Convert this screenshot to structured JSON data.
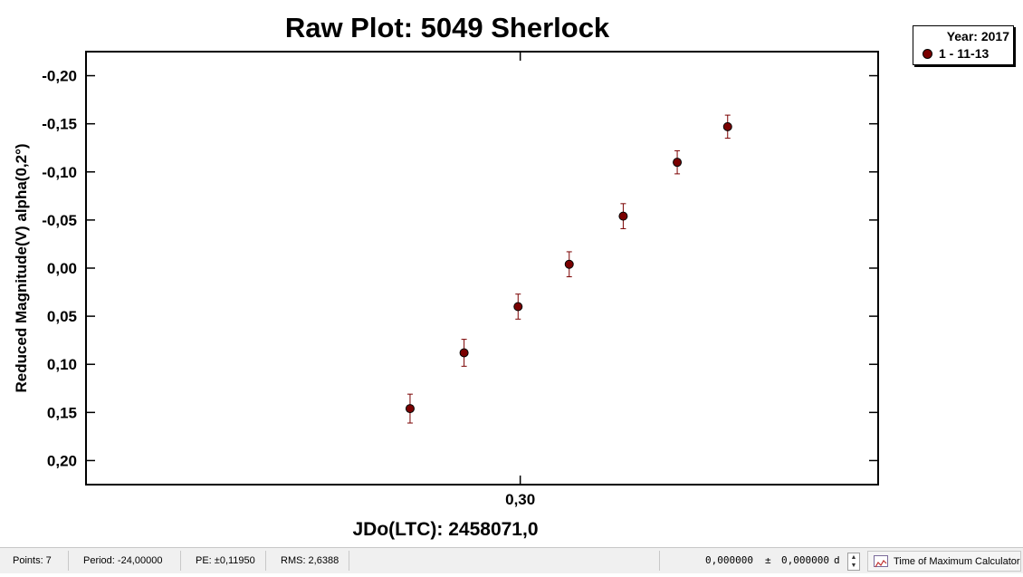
{
  "chart_data": {
    "type": "scatter",
    "title": "Raw Plot: 5049 Sherlock",
    "xlabel": "JDo(LTC): 2458071,0",
    "ylabel": "Reduced Magnitude(V) alpha(0,2°)",
    "x_tick_labels": [
      "0,30"
    ],
    "x_ticks": [
      0.3
    ],
    "xlim": [
      0.2397,
      0.3497
    ],
    "ylim": [
      0.225,
      -0.225
    ],
    "y_inverted": true,
    "y_tick_labels": [
      "-0,20",
      "-0,15",
      "-0,10",
      "-0,05",
      "0,00",
      "0,05",
      "0,10",
      "0,15",
      "0,20"
    ],
    "y_ticks": [
      -0.2,
      -0.15,
      -0.1,
      -0.05,
      0.0,
      0.05,
      0.1,
      0.15,
      0.2
    ],
    "grid": false,
    "legend": {
      "position": "top-right",
      "title": "Year: 2017",
      "entries": [
        "1 - 11-13"
      ]
    },
    "series": [
      {
        "name": "1 - 11-13",
        "color": "#7a0000",
        "x": [
          0.2847,
          0.2922,
          0.2997,
          0.3068,
          0.3143,
          0.3218,
          0.3288
        ],
        "y": [
          0.146,
          0.088,
          0.04,
          -0.004,
          -0.054,
          -0.11,
          -0.147
        ],
        "error": [
          0.015,
          0.014,
          0.013,
          0.013,
          0.013,
          0.012,
          0.012
        ]
      }
    ]
  },
  "status_bar": {
    "points": "Points: 7",
    "period": "Period: -24,00000",
    "pe": "PE: ±0,11950",
    "rms": "RMS: 2,6388",
    "value_1": "0,000000",
    "plus_minus": "±",
    "value_2": "0,000000",
    "unit": "d",
    "tmc_button": "Time of Maximum Calculator"
  },
  "icons": {
    "spinner_up": "spinner-up-icon",
    "spinner_down": "spinner-down-icon",
    "tmc": "chart-window-icon"
  }
}
